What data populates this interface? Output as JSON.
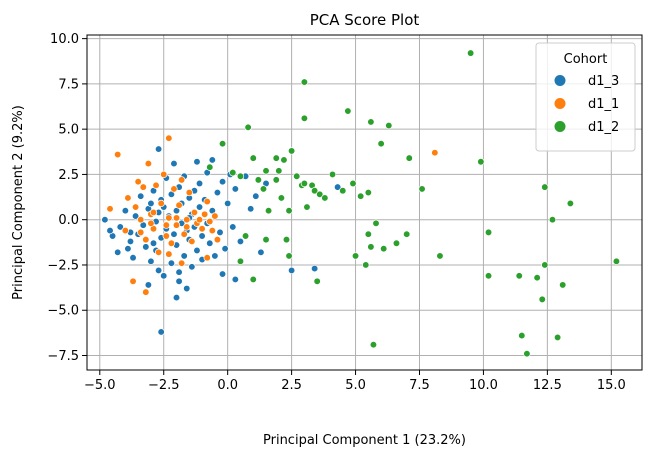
{
  "chart_data": {
    "type": "scatter",
    "title": "PCA Score Plot",
    "xlabel": "Principal Component 1 (23.2%)",
    "ylabel": "Principal Component 2 (9.2%)",
    "xlim": [
      -5.5,
      16.2
    ],
    "ylim": [
      -8.3,
      10.2
    ],
    "xticks": [
      -5.0,
      -2.5,
      0.0,
      2.5,
      5.0,
      7.5,
      10.0,
      12.5,
      15.0
    ],
    "yticks": [
      -7.5,
      -5.0,
      -2.5,
      0.0,
      2.5,
      5.0,
      7.5,
      10.0
    ],
    "xtick_labels": [
      "−5.0",
      "−2.5",
      "0.0",
      "2.5",
      "5.0",
      "7.5",
      "10.0",
      "12.5",
      "15.0"
    ],
    "ytick_labels": [
      "−7.5",
      "−5.0",
      "−2.5",
      "0.0",
      "2.5",
      "5.0",
      "7.5",
      "10.0"
    ],
    "grid": true,
    "legend": {
      "title": "Cohort",
      "placement": "top-right"
    },
    "series": [
      {
        "name": "d1_3",
        "color": "#1f77b4",
        "points": [
          [
            -4.8,
            0.0
          ],
          [
            -4.5,
            -0.9
          ],
          [
            -4.3,
            -1.8
          ],
          [
            -4.2,
            -0.4
          ],
          [
            -4.0,
            0.5
          ],
          [
            -3.9,
            -1.6
          ],
          [
            -3.8,
            -1.2
          ],
          [
            -3.7,
            -2.1
          ],
          [
            -3.6,
            0.2
          ],
          [
            -3.5,
            -0.8
          ],
          [
            -3.4,
            1.3
          ],
          [
            -3.3,
            -0.3
          ],
          [
            -3.2,
            -1.5
          ],
          [
            -3.1,
            0.6
          ],
          [
            -3.0,
            -2.3
          ],
          [
            -3.0,
            0.9
          ],
          [
            -2.9,
            1.6
          ],
          [
            -2.8,
            -0.1
          ],
          [
            -2.8,
            -1.7
          ],
          [
            -2.7,
            0.4
          ],
          [
            -2.7,
            -2.8
          ],
          [
            -2.6,
            1.1
          ],
          [
            -2.6,
            -1.0
          ],
          [
            -2.5,
            0.7
          ],
          [
            -2.5,
            -3.1
          ],
          [
            -2.4,
            -0.5
          ],
          [
            -2.4,
            2.3
          ],
          [
            -2.3,
            -1.9
          ],
          [
            -2.3,
            0.2
          ],
          [
            -2.2,
            1.4
          ],
          [
            -2.2,
            -2.4
          ],
          [
            -2.1,
            -0.8
          ],
          [
            -2.1,
            3.1
          ],
          [
            -2.0,
            0.5
          ],
          [
            -2.0,
            -1.4
          ],
          [
            -1.9,
            1.8
          ],
          [
            -1.9,
            -3.4
          ],
          [
            -1.8,
            -0.2
          ],
          [
            -1.8,
            0.9
          ],
          [
            -1.7,
            -2.0
          ],
          [
            -1.7,
            2.4
          ],
          [
            -1.6,
            -0.6
          ],
          [
            -1.6,
            -3.8
          ],
          [
            -1.5,
            1.2
          ],
          [
            -1.5,
            -1.1
          ],
          [
            -1.4,
            0.3
          ],
          [
            -1.4,
            -2.6
          ],
          [
            -1.3,
            1.6
          ],
          [
            -1.3,
            -0.4
          ],
          [
            -1.2,
            -1.7
          ],
          [
            -1.1,
            0.7
          ],
          [
            -1.1,
            2.0
          ],
          [
            -1.0,
            -0.9
          ],
          [
            -1.0,
            -2.2
          ],
          [
            -0.9,
            1.1
          ],
          [
            -0.8,
            -0.2
          ],
          [
            -0.8,
            2.6
          ],
          [
            -0.7,
            -1.3
          ],
          [
            -0.6,
            0.5
          ],
          [
            -0.6,
            3.3
          ],
          [
            -0.5,
            -2.0
          ],
          [
            -0.4,
            1.5
          ],
          [
            -0.3,
            -0.7
          ],
          [
            -0.2,
            2.1
          ],
          [
            -0.1,
            -1.6
          ],
          [
            0.0,
            0.9
          ],
          [
            0.1,
            2.5
          ],
          [
            0.2,
            -0.4
          ],
          [
            0.3,
            1.7
          ],
          [
            0.5,
            -1.2
          ],
          [
            0.7,
            2.4
          ],
          [
            0.9,
            0.6
          ],
          [
            1.1,
            1.3
          ],
          [
            1.3,
            -1.8
          ],
          [
            1.5,
            2.0
          ],
          [
            -2.6,
            -6.2
          ],
          [
            -2.7,
            3.9
          ],
          [
            -4.6,
            -0.6
          ],
          [
            -3.1,
            -3.6
          ],
          [
            -2.0,
            -4.3
          ],
          [
            0.3,
            -3.3
          ],
          [
            2.5,
            -2.8
          ],
          [
            3.4,
            -2.7
          ],
          [
            4.3,
            1.8
          ],
          [
            -1.2,
            3.2
          ],
          [
            -0.2,
            -3.0
          ],
          [
            -2.9,
            -1.3
          ],
          [
            -3.8,
            -0.7
          ],
          [
            -1.9,
            -2.9
          ],
          [
            -1.5,
            0.1
          ]
        ]
      },
      {
        "name": "d1_1",
        "color": "#ff7f0e",
        "points": [
          [
            -4.3,
            3.6
          ],
          [
            -4.6,
            0.6
          ],
          [
            -4.0,
            -0.6
          ],
          [
            -3.9,
            1.2
          ],
          [
            -3.7,
            -3.4
          ],
          [
            -3.5,
            2.1
          ],
          [
            -3.4,
            -0.7
          ],
          [
            -3.3,
            1.8
          ],
          [
            -3.2,
            -1.1
          ],
          [
            -3.1,
            3.1
          ],
          [
            -3.0,
            0.3
          ],
          [
            -2.9,
            -0.5
          ],
          [
            -2.8,
            1.9
          ],
          [
            -2.7,
            -1.8
          ],
          [
            -2.6,
            0.9
          ],
          [
            -2.5,
            2.5
          ],
          [
            -2.4,
            -0.9
          ],
          [
            -2.3,
            4.5
          ],
          [
            -2.3,
            0.1
          ],
          [
            -2.2,
            -1.3
          ],
          [
            -2.1,
            1.7
          ],
          [
            -2.0,
            -0.3
          ],
          [
            -1.9,
            0.8
          ],
          [
            -1.8,
            2.2
          ],
          [
            -1.7,
            -0.8
          ],
          [
            -1.6,
            0.0
          ],
          [
            -1.5,
            1.5
          ],
          [
            -1.4,
            -1.2
          ],
          [
            -1.3,
            0.4
          ],
          [
            -1.2,
            -0.2
          ],
          [
            -1.1,
            0.0
          ],
          [
            -1.0,
            -0.5
          ],
          [
            -0.9,
            0.3
          ],
          [
            -0.8,
            1.0
          ],
          [
            -0.7,
            -0.1
          ],
          [
            -0.6,
            -0.6
          ],
          [
            -0.5,
            0.2
          ],
          [
            -0.4,
            -1.1
          ],
          [
            -3.2,
            -4.0
          ],
          [
            -2.3,
            -1.9
          ],
          [
            -3.4,
            0.0
          ],
          [
            -2.9,
            0.4
          ],
          [
            -1.8,
            -2.4
          ],
          [
            -0.8,
            -2.1
          ],
          [
            8.1,
            3.7
          ],
          [
            -2.4,
            -0.3
          ],
          [
            -3.0,
            -0.2
          ],
          [
            -2.0,
            0.1
          ],
          [
            -1.6,
            -0.4
          ],
          [
            -3.6,
            0.7
          ]
        ]
      },
      {
        "name": "d1_2",
        "color": "#2ca02c",
        "points": [
          [
            9.5,
            9.2
          ],
          [
            3.0,
            7.6
          ],
          [
            3.0,
            5.6
          ],
          [
            4.7,
            6.0
          ],
          [
            5.6,
            5.4
          ],
          [
            6.3,
            5.2
          ],
          [
            6.0,
            4.2
          ],
          [
            0.8,
            5.1
          ],
          [
            -0.2,
            4.2
          ],
          [
            -0.7,
            2.9
          ],
          [
            0.2,
            2.6
          ],
          [
            0.5,
            2.4
          ],
          [
            1.0,
            3.4
          ],
          [
            1.2,
            2.2
          ],
          [
            1.4,
            1.7
          ],
          [
            1.5,
            2.7
          ],
          [
            1.6,
            0.5
          ],
          [
            1.9,
            2.2
          ],
          [
            1.9,
            3.4
          ],
          [
            2.0,
            2.7
          ],
          [
            2.1,
            1.2
          ],
          [
            2.2,
            3.3
          ],
          [
            2.4,
            0.5
          ],
          [
            2.5,
            3.8
          ],
          [
            2.7,
            2.4
          ],
          [
            2.9,
            1.9
          ],
          [
            3.0,
            2.0
          ],
          [
            3.1,
            0.7
          ],
          [
            3.3,
            1.9
          ],
          [
            3.4,
            1.6
          ],
          [
            3.6,
            1.4
          ],
          [
            3.8,
            1.2
          ],
          [
            4.1,
            2.5
          ],
          [
            4.5,
            1.6
          ],
          [
            4.9,
            2.0
          ],
          [
            5.2,
            1.3
          ],
          [
            5.5,
            1.5
          ],
          [
            5.5,
            -0.8
          ],
          [
            5.8,
            -0.2
          ],
          [
            7.1,
            3.4
          ],
          [
            7.6,
            1.7
          ],
          [
            9.9,
            3.2
          ],
          [
            12.4,
            1.8
          ],
          [
            13.4,
            0.9
          ],
          [
            12.7,
            0.0
          ],
          [
            10.2,
            -0.7
          ],
          [
            8.3,
            -2.0
          ],
          [
            7.0,
            -0.8
          ],
          [
            6.6,
            -1.3
          ],
          [
            6.1,
            -1.6
          ],
          [
            5.6,
            -1.5
          ],
          [
            5.4,
            -2.5
          ],
          [
            5.0,
            -2.0
          ],
          [
            3.5,
            -3.4
          ],
          [
            2.4,
            -2.0
          ],
          [
            2.3,
            -1.1
          ],
          [
            1.0,
            -3.3
          ],
          [
            1.5,
            -1.1
          ],
          [
            0.7,
            -0.9
          ],
          [
            5.7,
            -6.9
          ],
          [
            11.5,
            -6.4
          ],
          [
            11.7,
            -7.4
          ],
          [
            12.9,
            -6.5
          ],
          [
            12.3,
            -4.4
          ],
          [
            10.2,
            -3.1
          ],
          [
            11.4,
            -3.1
          ],
          [
            12.1,
            -3.2
          ],
          [
            12.4,
            -2.5
          ],
          [
            13.1,
            -3.6
          ],
          [
            15.2,
            -2.3
          ],
          [
            0.5,
            -2.3
          ]
        ]
      }
    ]
  }
}
